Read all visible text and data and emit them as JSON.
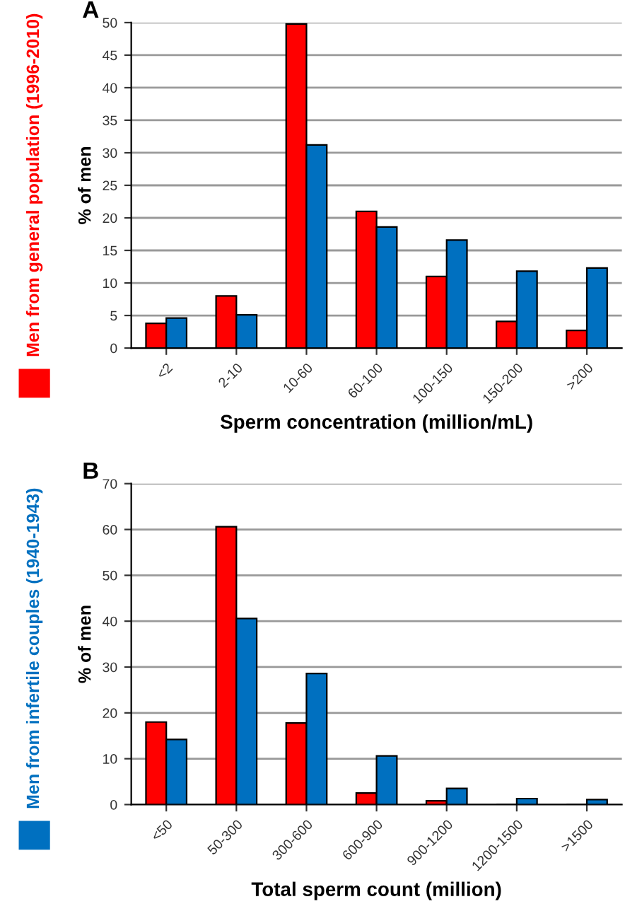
{
  "chart_data": [
    {
      "type": "bar",
      "title": "A",
      "xlabel": "Sperm concentration (million/mL)",
      "ylabel": "% of men",
      "categories": [
        "<2",
        "2-10",
        "10-60",
        "60-100",
        "100-150",
        "150-200",
        ">200"
      ],
      "series": [
        {
          "name": "Men from general population (1996-2010)",
          "color": "#ff0000",
          "values": [
            3.8,
            8,
            49.8,
            21,
            11,
            4.1,
            2.7
          ]
        },
        {
          "name": "Men from infertile couples (1940-1943)",
          "color": "#0070c0",
          "values": [
            4.6,
            5.1,
            31.2,
            18.6,
            16.6,
            11.8,
            12.3
          ]
        }
      ],
      "ylim": [
        0,
        50
      ],
      "yticks": [
        0,
        5,
        10,
        15,
        20,
        25,
        30,
        35,
        40,
        45,
        50
      ],
      "grid": "y",
      "legend": "left"
    },
    {
      "type": "bar",
      "title": "B",
      "xlabel": "Total sperm count (million)",
      "ylabel": "% of men",
      "categories": [
        "<50",
        "50-300",
        "300-600",
        "600-900",
        "900-1200",
        "1200-1500",
        ">1500"
      ],
      "series": [
        {
          "color": "#ff0000",
          "values": [
            18,
            60.6,
            17.8,
            2.5,
            0.8,
            null,
            null
          ]
        },
        {
          "color": "#0070c0",
          "values": [
            14.2,
            40.6,
            28.6,
            10.6,
            3.5,
            1.3,
            1.1
          ]
        }
      ],
      "ylim": [
        0,
        70
      ],
      "yticks": [
        0,
        10,
        20,
        30,
        40,
        50,
        60,
        70
      ],
      "grid": "y"
    }
  ]
}
